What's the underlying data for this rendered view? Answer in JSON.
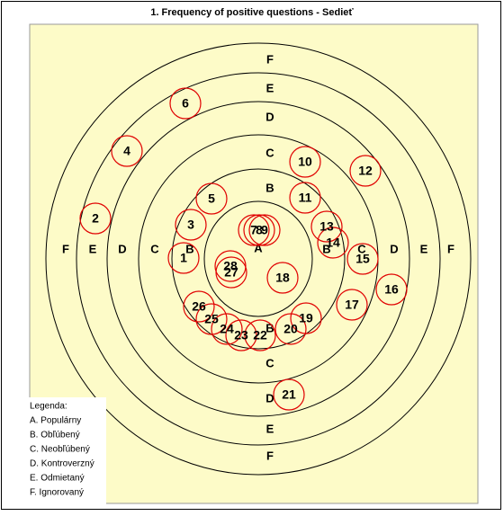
{
  "title": "1. Frequency of positive questions - Sedieť",
  "rings": [
    "A",
    "B",
    "C",
    "D",
    "E",
    "F"
  ],
  "items": [
    "1",
    "2",
    "3",
    "4",
    "5",
    "6",
    "7",
    "8",
    "9",
    "10",
    "11",
    "12",
    "13",
    "14",
    "15",
    "16",
    "17",
    "18",
    "19",
    "20",
    "21",
    "22",
    "23",
    "24",
    "25",
    "26",
    "27",
    "28"
  ],
  "legend": {
    "title": "Legenda:",
    "entries": [
      "A. Populárny",
      "B. Obľúbený",
      "C. Neobľúbený",
      "D. Kontroverzný",
      "E. Odmietaný",
      "F. Ignorovaný"
    ]
  }
}
